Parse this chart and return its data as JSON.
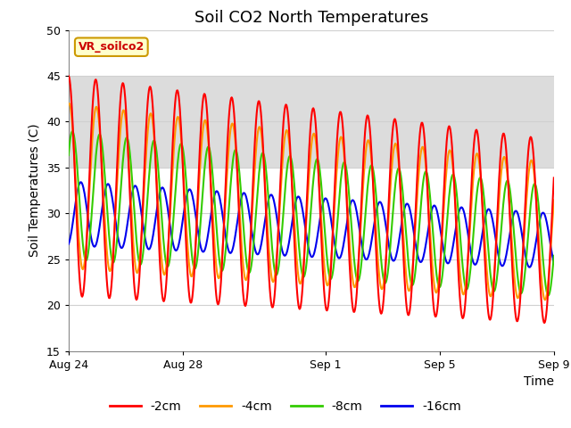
{
  "title": "Soil CO2 North Temperatures",
  "xlabel": "Time",
  "ylabel": "Soil Temperatures (C)",
  "ylim": [
    15,
    50
  ],
  "xlim_days": [
    0,
    17
  ],
  "xtick_labels": [
    "Aug 24",
    "Aug 28",
    "Sep 1",
    "Sep 5",
    "Sep 9"
  ],
  "xtick_positions": [
    0,
    4,
    9,
    13,
    17
  ],
  "colors": {
    "-2cm": "#ff0000",
    "-4cm": "#ff9900",
    "-8cm": "#33cc00",
    "-16cm": "#0000ee"
  },
  "legend_label": "VR_soilco2",
  "legend_bg": "#ffffcc",
  "legend_border": "#cc9900",
  "fig_bg": "#ffffff",
  "plot_bg": "#ffffff",
  "band_color": "#dcdcdc",
  "band_ymin": 35,
  "band_ymax": 45,
  "grid_color": "#d0d0d0",
  "title_fontsize": 13,
  "axis_label_fontsize": 10,
  "tick_fontsize": 9,
  "linewidth": 1.5
}
